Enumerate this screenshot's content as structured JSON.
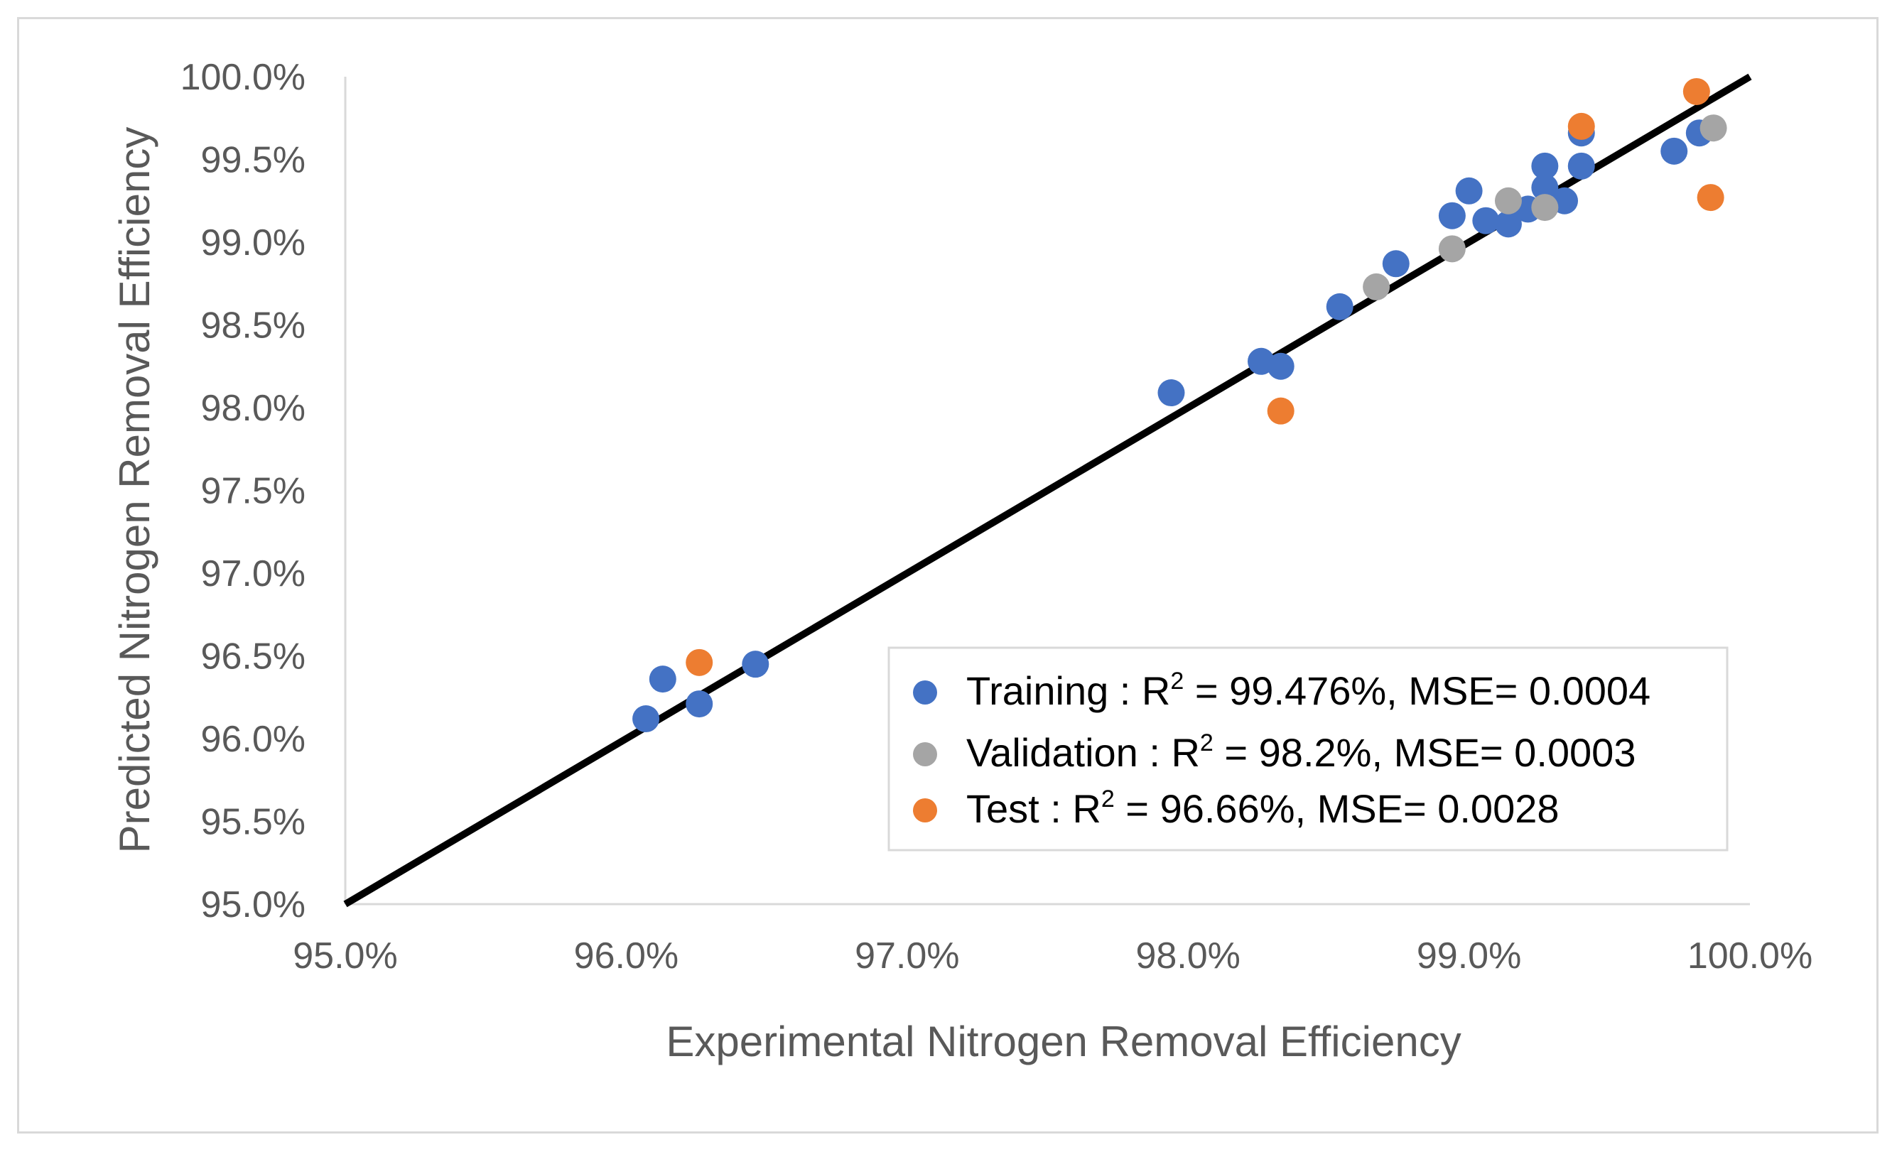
{
  "chart_data": {
    "type": "scatter",
    "xlabel": "Experimental Nitrogen Removal Efficiency",
    "ylabel": "Predicted Nitrogen Removal Efficiency",
    "xlim": [
      95.0,
      100.0
    ],
    "ylim": [
      95.0,
      100.0
    ],
    "x_ticks": [
      "95.0%",
      "96.0%",
      "97.0%",
      "98.0%",
      "99.0%",
      "100.0%"
    ],
    "y_ticks": [
      "95.0%",
      "95.5%",
      "96.0%",
      "96.5%",
      "97.0%",
      "97.5%",
      "98.0%",
      "98.5%",
      "99.0%",
      "99.5%",
      "100.0%"
    ],
    "grid": false,
    "legend_position": "bottom-right",
    "reference_line": {
      "from": [
        95.0,
        95.0
      ],
      "to": [
        100.0,
        100.0
      ],
      "color": "#000000"
    },
    "series": [
      {
        "legend_pre": "Training : R",
        "legend_sup": "2",
        "legend_post": " = 99.476%, MSE= 0.0004",
        "color": "#4472c4",
        "points": [
          [
            96.07,
            96.12
          ],
          [
            96.13,
            96.36
          ],
          [
            96.26,
            96.21
          ],
          [
            96.46,
            96.45
          ],
          [
            97.94,
            98.09
          ],
          [
            98.26,
            98.28
          ],
          [
            98.33,
            98.25
          ],
          [
            98.54,
            98.61
          ],
          [
            98.74,
            98.87
          ],
          [
            98.94,
            99.16
          ],
          [
            99.0,
            99.31
          ],
          [
            99.06,
            99.13
          ],
          [
            99.14,
            99.11
          ],
          [
            99.21,
            99.2
          ],
          [
            99.27,
            99.46
          ],
          [
            99.27,
            99.33
          ],
          [
            99.34,
            99.25
          ],
          [
            99.4,
            99.66
          ],
          [
            99.4,
            99.46
          ],
          [
            99.73,
            99.55
          ],
          [
            99.82,
            99.66
          ]
        ]
      },
      {
        "legend_pre": "Validation : R",
        "legend_sup": "2",
        "legend_post": " = 98.2%,  MSE= 0.0003",
        "color": "#a5a5a5",
        "points": [
          [
            98.67,
            98.73
          ],
          [
            98.94,
            98.96
          ],
          [
            99.14,
            99.25
          ],
          [
            99.27,
            99.21
          ],
          [
            99.87,
            99.69
          ]
        ]
      },
      {
        "legend_pre": " Test : R",
        "legend_sup": "2",
        "legend_post": " = 96.66%,  MSE= 0.0028",
        "color": "#ed7d31",
        "points": [
          [
            96.26,
            96.46
          ],
          [
            98.33,
            97.98
          ],
          [
            99.4,
            99.7
          ],
          [
            99.81,
            99.91
          ],
          [
            99.86,
            99.27
          ]
        ]
      }
    ]
  }
}
